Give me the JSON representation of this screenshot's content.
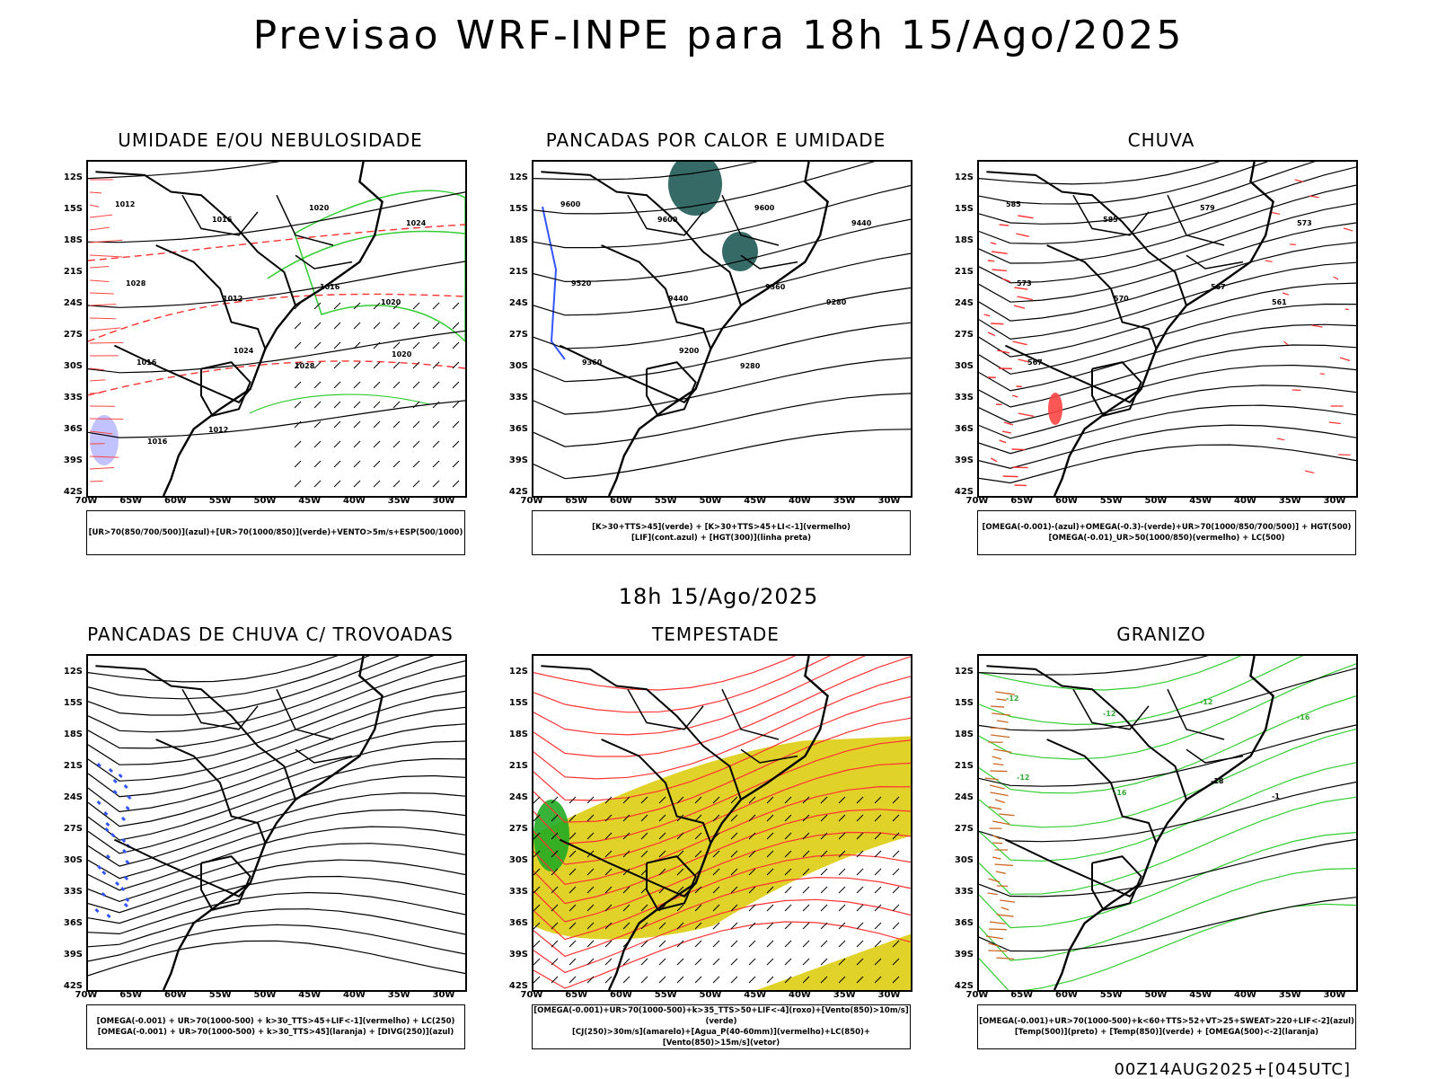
{
  "title": "Previsao WRF-INPE  para 18h 15/Ago/2025",
  "subtitle": "18h 15/Ago/2025",
  "footer": "00Z14AUG2025+[045UTC]",
  "lat_labels": [
    "12S",
    "15S",
    "18S",
    "21S",
    "24S",
    "27S",
    "30S",
    "33S",
    "36S",
    "39S",
    "42S"
  ],
  "lon_labels": [
    "70W",
    "65W",
    "60W",
    "55W",
    "50W",
    "45W",
    "40W",
    "35W",
    "30W"
  ],
  "panels": [
    {
      "title": "UMIDADE E/OU NEBULOSIDADE",
      "legend": [
        "[UR>70(850/700/500)](azul)+[UR>70(1000/850)](verde)+VENTO>5m/s+ESP(500/1000)"
      ],
      "contour_labels": [
        "1012",
        "1016",
        "1020",
        "1024",
        "1028",
        "1012",
        "1016",
        "1020",
        "1016",
        "1024",
        "1028",
        "1020",
        "1016",
        "1012"
      ]
    },
    {
      "title": "PANCADAS POR CALOR E UMIDADE",
      "legend": [
        "[K>30+TTS>45](verde) + [K>30+TTS>45+LI<-1](vermelho)",
        "[LIF](cont.azul) + [HGT(300)](linha preta)"
      ],
      "contour_labels": [
        "9600",
        "9600",
        "9600",
        "9440",
        "9520",
        "9440",
        "9360",
        "9280",
        "9360",
        "9200",
        "9280"
      ]
    },
    {
      "title": "CHUVA",
      "legend": [
        "[OMEGA(-0.001)-(azul)+OMEGA(-0.3)-(verde)+UR>70(1000/850/700/500)] + HGT(500)",
        "[OMEGA(-0.01)_UR>50(1000/850)(vermelho) + LC(500)"
      ],
      "contour_labels": [
        "585",
        "585",
        "579",
        "573",
        "573",
        "570",
        "567",
        "561",
        "567"
      ]
    },
    {
      "title": "PANCADAS DE CHUVA C/ TROVOADAS",
      "legend": [
        "[OMEGA(-0.001) + UR>70(1000-500) + k>30_TTS>45+LIF<-1](vermelho) + LC(250)",
        "[OMEGA(-0.001) + UR>70(1000-500) + k>30_TTS>45](laranja) + [DIVG(250)](azul)"
      ],
      "contour_labels": []
    },
    {
      "title": "TEMPESTADE",
      "legend": [
        "[OMEGA(-0.001)+UR>70(1000-500)+k>35_TTS>50+LIF<-4](roxo)+[Vento(850)>10m/s](verde)",
        "[CJ(250)>30m/s](amarelo)+[Agua_P(40-60mm)](vermelho)+LC(850)+[Vento(850)>15m/s](vetor)"
      ],
      "contour_labels": []
    },
    {
      "title": "GRANIZO",
      "legend": [
        "[OMEGA(-0.001)+UR>70(1000-500)+k<60+TTS>52+VT>25+SWEAT>220+LIF<-2](azul)",
        "[Temp(500)](preto) + [Temp(850)](verde) + [OMEGA(500)<-2](laranja)"
      ],
      "contour_labels": [
        "-12",
        "-12",
        "-12",
        "-16",
        "-12",
        "-16",
        "-18",
        "-1"
      ]
    }
  ]
}
